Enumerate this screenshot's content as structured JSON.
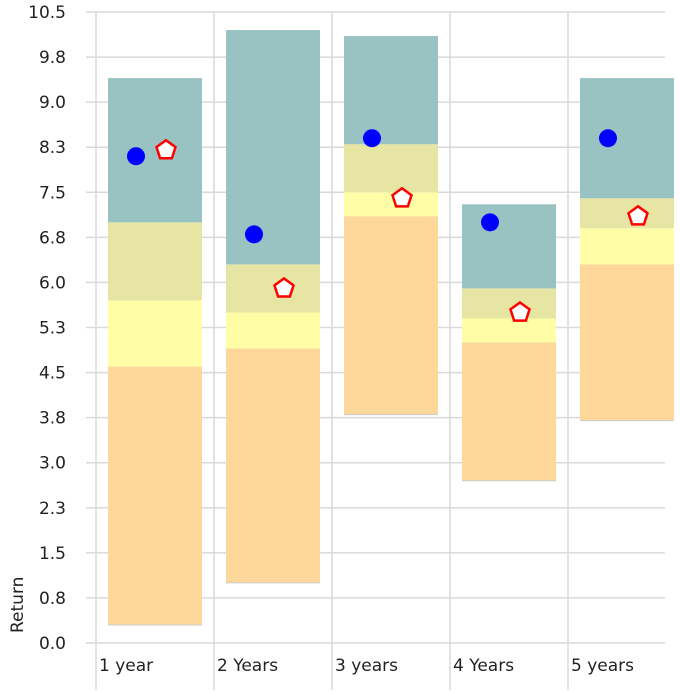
{
  "chart_data": {
    "type": "bar",
    "subtype": "floating-stacked-range",
    "ylabel": "Return",
    "xlabel": "",
    "ylim": [
      0,
      10.5
    ],
    "yticks": [
      "0.0",
      "0.8",
      "1.5",
      "2.3",
      "3.0",
      "3.8",
      "4.5",
      "5.3",
      "6.0",
      "6.8",
      "7.5",
      "8.3",
      "9.0",
      "9.8",
      "10.5"
    ],
    "grid": true,
    "categories": [
      "1 year",
      "2 Years",
      "3 years",
      "4 Years",
      "5 years"
    ],
    "bands": [
      {
        "color": "#fed79a",
        "values_low": [
          0.3,
          1.0,
          3.8,
          2.7,
          3.7
        ],
        "values_high": [
          4.6,
          4.9,
          7.1,
          5.0,
          6.3
        ]
      },
      {
        "color": "#fffea6",
        "values_low": [
          4.6,
          4.9,
          7.1,
          5.0,
          6.3
        ],
        "values_high": [
          5.7,
          5.5,
          7.5,
          5.4,
          6.9
        ]
      },
      {
        "color": "#e6e5a4",
        "values_low": [
          5.7,
          5.5,
          7.5,
          5.4,
          6.9
        ],
        "values_high": [
          7.0,
          6.3,
          8.3,
          5.9,
          7.4
        ]
      },
      {
        "color": "#99c3c2",
        "values_low": [
          7.0,
          6.3,
          8.3,
          5.9,
          7.4
        ],
        "values_high": [
          9.4,
          10.2,
          10.1,
          7.3,
          9.4
        ]
      }
    ],
    "markers": [
      {
        "shape": "circle",
        "color": "#0000ff",
        "values": [
          8.1,
          6.8,
          8.4,
          7.0,
          8.4
        ]
      },
      {
        "shape": "pentagon",
        "color": "#ff0000",
        "values": [
          8.2,
          5.9,
          7.4,
          5.5,
          7.1
        ]
      }
    ]
  }
}
